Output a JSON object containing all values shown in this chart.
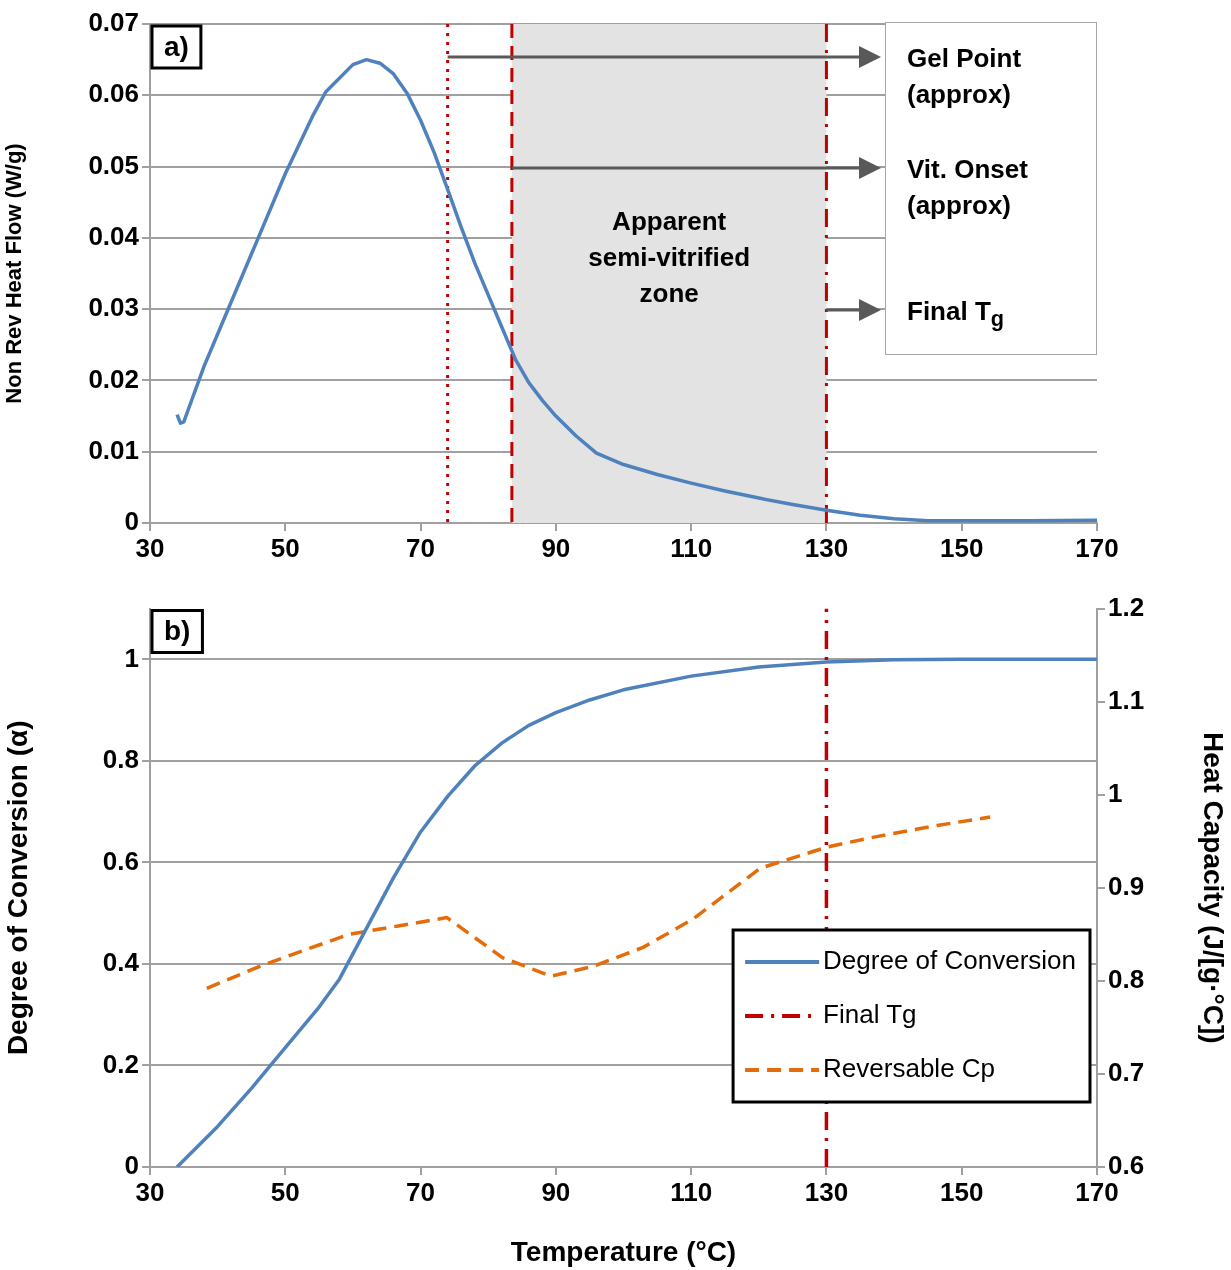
{
  "chart_data": [
    {
      "type": "line",
      "ylabel": "Non Rev Heat Flow (W/g)",
      "x": [
        34,
        34.5,
        35,
        38,
        42,
        46,
        50,
        54,
        56,
        60,
        62,
        64,
        66,
        68,
        70,
        72,
        74,
        76,
        78,
        80,
        82,
        84,
        86,
        88,
        90,
        93,
        96,
        100,
        105,
        110,
        115,
        120,
        125,
        130,
        135,
        140,
        145,
        150,
        160,
        170
      ],
      "values": [
        0.0152,
        0.014,
        0.0142,
        0.022,
        0.031,
        0.04,
        0.049,
        0.057,
        0.0605,
        0.0643,
        0.065,
        0.0645,
        0.063,
        0.0603,
        0.0565,
        0.052,
        0.0468,
        0.0415,
        0.0365,
        0.032,
        0.0275,
        0.023,
        0.0197,
        0.0172,
        0.015,
        0.0122,
        0.0098,
        0.0082,
        0.0068,
        0.0056,
        0.0045,
        0.0035,
        0.0026,
        0.0018,
        0.0011,
        0.0006,
        0.0003,
        0.0003,
        0.0003,
        0.0004
      ],
      "color": "#4f81bd",
      "marker": "none",
      "grid": "y",
      "xlim": [
        30,
        170
      ],
      "xticks": [
        30,
        50,
        70,
        90,
        110,
        130,
        150,
        170
      ],
      "ylim": [
        0,
        0.07
      ],
      "yticks": [
        0,
        0.01,
        0.02,
        0.03,
        0.04,
        0.05,
        0.06,
        0.07
      ],
      "ref_lines": [
        {
          "axis": "x",
          "value": 74,
          "color": "#c00000",
          "line_style": "dotted"
        },
        {
          "axis": "x",
          "value": 83.5,
          "color": "#c00000",
          "line_style": "dashed"
        },
        {
          "axis": "x",
          "value": 130,
          "color": "#c00000",
          "line_style": "dashdot"
        }
      ],
      "bands": [
        {
          "axis": "x",
          "from": 83.5,
          "to": 130,
          "label": "Apparent semi-vitrified zone",
          "color": "#e3e3e3"
        }
      ],
      "annotations": [
        "a)",
        "Gel Point (approx)",
        "Vit. Onset (approx)",
        "Final T$_{g}$"
      ]
    },
    {
      "type": "line",
      "xlabel": "Temperature (°C)",
      "ylabel": "Degree of Conversion (α)",
      "y2label": "Heat Capacity (J/[g·°C])",
      "series": [
        {
          "name": "Degree of Conversion",
          "color": "#4f81bd",
          "line_style": "solid",
          "x": [
            34,
            40,
            45,
            50,
            55,
            58,
            62,
            66,
            70,
            74,
            78,
            82,
            86,
            90,
            95,
            100,
            110,
            120,
            130,
            140,
            150,
            170
          ],
          "values": [
            0,
            0.08,
            0.155,
            0.235,
            0.315,
            0.37,
            0.47,
            0.57,
            0.66,
            0.73,
            0.79,
            0.835,
            0.87,
            0.895,
            0.92,
            0.94,
            0.967,
            0.985,
            0.995,
            0.999,
            1,
            1
          ]
        },
        {
          "name": "Final Tg",
          "color": "#c00000",
          "line_style": "dashdot",
          "x": [
            130,
            130
          ],
          "values": [
            0,
            1.1
          ]
        },
        {
          "name": "Reversable Cp",
          "color": "#e46c0a",
          "line_style": "dashed",
          "axis": "y2",
          "x": [
            38.4,
            46.7,
            59.4,
            66.7,
            73.9,
            82.1,
            89.3,
            95.7,
            102.9,
            110.2,
            120.2,
            130.2,
            137.4,
            146.4,
            154.2
          ],
          "values": [
            0.792,
            0.817,
            0.85,
            0.859,
            0.868,
            0.825,
            0.805,
            0.816,
            0.836,
            0.866,
            0.921,
            0.944,
            0.955,
            0.967,
            0.976
          ]
        }
      ],
      "marker": "none",
      "grid": "y",
      "legend": "bottom right",
      "xlim": [
        30,
        170
      ],
      "xticks": [
        30,
        50,
        70,
        90,
        110,
        130,
        150,
        170
      ],
      "ylim": [
        0,
        1.1
      ],
      "yticks": [
        0,
        0.2,
        0.4,
        0.6,
        0.8,
        1
      ],
      "y2lim": [
        0.6,
        1.2
      ],
      "y2ticks": [
        0.6,
        0.7,
        0.8,
        0.9,
        1,
        1.1,
        1.2
      ],
      "annotations": [
        "b)"
      ]
    }
  ]
}
